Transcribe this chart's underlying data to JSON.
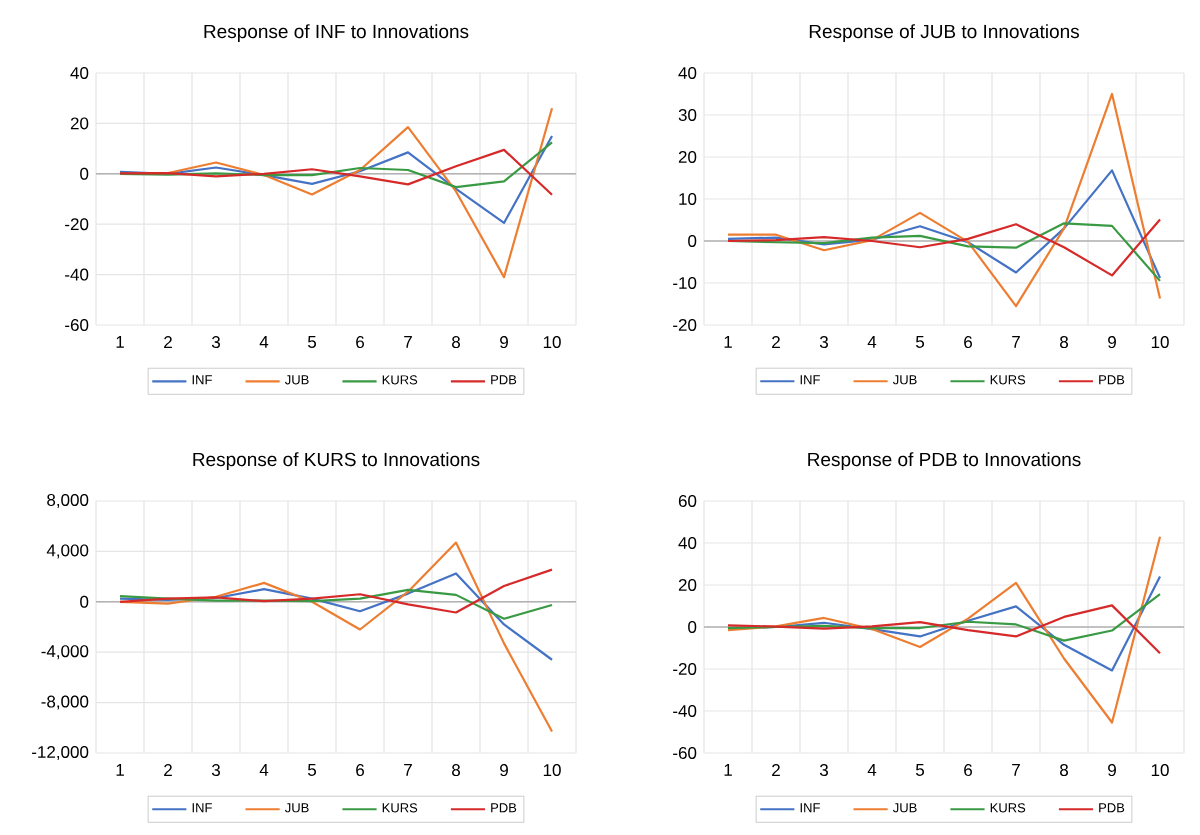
{
  "chart_data": [
    {
      "type": "line",
      "title": "Response of INF to Innovations",
      "categories": [
        "1",
        "2",
        "3",
        "4",
        "5",
        "6",
        "7",
        "8",
        "9",
        "10"
      ],
      "ylim": [
        -60,
        40
      ],
      "yticks": [
        -60,
        -40,
        -20,
        0,
        20,
        40
      ],
      "grid": true,
      "legend": "bottom",
      "series": [
        {
          "name": "INF",
          "color": "#4472c4",
          "values": [
            0.8,
            0,
            2.5,
            -0.5,
            -4,
            1,
            8.5,
            -6,
            -19.5,
            15
          ]
        },
        {
          "name": "JUB",
          "color": "#ed7d31",
          "values": [
            0,
            0.3,
            4.5,
            -0.5,
            -8.2,
            1.5,
            18.5,
            -7,
            -41,
            26
          ]
        },
        {
          "name": "KURS",
          "color": "#3a9a44",
          "values": [
            0,
            -0.3,
            0.2,
            -0.5,
            -0.5,
            2.3,
            1.5,
            -5.3,
            -3,
            12.5
          ]
        },
        {
          "name": "PDB",
          "color": "#d62a2a",
          "values": [
            0.2,
            0.3,
            -1,
            0,
            1.8,
            -1,
            -4.2,
            3,
            9.5,
            -8.3
          ]
        }
      ]
    },
    {
      "type": "line",
      "title": "Response of JUB to Innovations",
      "categories": [
        "1",
        "2",
        "3",
        "4",
        "5",
        "6",
        "7",
        "8",
        "9",
        "10"
      ],
      "ylim": [
        -20,
        40
      ],
      "yticks": [
        -20,
        -10,
        0,
        10,
        20,
        30,
        40
      ],
      "grid": true,
      "legend": "bottom",
      "series": [
        {
          "name": "INF",
          "color": "#4472c4",
          "values": [
            0.5,
            0.8,
            -0.8,
            0.3,
            3.5,
            -0.3,
            -7.5,
            3,
            16.8,
            -8.8
          ]
        },
        {
          "name": "JUB",
          "color": "#ed7d31",
          "values": [
            1.5,
            1.5,
            -2.2,
            0.2,
            6.7,
            -0.2,
            -15.5,
            3,
            35,
            -13.7
          ]
        },
        {
          "name": "KURS",
          "color": "#3a9a44",
          "values": [
            0,
            -0.3,
            -0.5,
            0.8,
            1.2,
            -1.3,
            -1.6,
            4.2,
            3.6,
            -9.5
          ]
        },
        {
          "name": "PDB",
          "color": "#d62a2a",
          "values": [
            0,
            0.2,
            0.9,
            0,
            -1.5,
            0.5,
            4,
            -1.5,
            -8.2,
            5.1
          ]
        }
      ]
    },
    {
      "type": "line",
      "title": "Response of KURS to Innovations",
      "categories": [
        "1",
        "2",
        "3",
        "4",
        "5",
        "6",
        "7",
        "8",
        "9",
        "10"
      ],
      "ylim": [
        -12000,
        8000
      ],
      "yticks": [
        {
          "value": -12000,
          "label": "-12,000"
        },
        {
          "value": -8000,
          "label": "-8,000"
        },
        {
          "value": -4000,
          "label": "-4,000"
        },
        0,
        {
          "value": 4000,
          "label": "4,000"
        },
        {
          "value": 8000,
          "label": "8,000"
        }
      ],
      "grid": true,
      "legend": "bottom",
      "series": [
        {
          "name": "INF",
          "color": "#4472c4",
          "values": [
            250,
            150,
            300,
            1000,
            250,
            -750,
            650,
            2250,
            -1800,
            -4600
          ]
        },
        {
          "name": "JUB",
          "color": "#ed7d31",
          "values": [
            0,
            -150,
            400,
            1500,
            0,
            -2200,
            800,
            4700,
            -3300,
            -10300
          ]
        },
        {
          "name": "KURS",
          "color": "#3a9a44",
          "values": [
            450,
            250,
            100,
            100,
            50,
            250,
            950,
            550,
            -1350,
            -250
          ]
        },
        {
          "name": "PDB",
          "color": "#d62a2a",
          "values": [
            0,
            250,
            350,
            50,
            250,
            600,
            -200,
            -850,
            1250,
            2550
          ]
        }
      ]
    },
    {
      "type": "line",
      "title": "Response of PDB to Innovations",
      "categories": [
        "1",
        "2",
        "3",
        "4",
        "5",
        "6",
        "7",
        "8",
        "9",
        "10"
      ],
      "ylim": [
        -60,
        60
      ],
      "yticks": [
        -60,
        -40,
        -20,
        0,
        20,
        40,
        60
      ],
      "grid": true,
      "legend": "bottom",
      "series": [
        {
          "name": "INF",
          "color": "#4472c4",
          "values": [
            -0.5,
            0,
            2,
            -1,
            -4.5,
            3,
            9.8,
            -8.5,
            -20.7,
            24
          ]
        },
        {
          "name": "JUB",
          "color": "#ed7d31",
          "values": [
            -1.5,
            0.3,
            4.3,
            -1,
            -9.5,
            4,
            21,
            -15,
            -45.5,
            43
          ]
        },
        {
          "name": "KURS",
          "color": "#3a9a44",
          "values": [
            -0.5,
            0,
            0.5,
            -0.5,
            -0.5,
            2.5,
            1.2,
            -6.5,
            -1.7,
            15.7
          ]
        },
        {
          "name": "PDB",
          "color": "#d62a2a",
          "values": [
            0.8,
            0.2,
            -0.8,
            0.3,
            2.3,
            -1.5,
            -4.5,
            4.8,
            10.3,
            -12.5
          ]
        }
      ]
    }
  ]
}
